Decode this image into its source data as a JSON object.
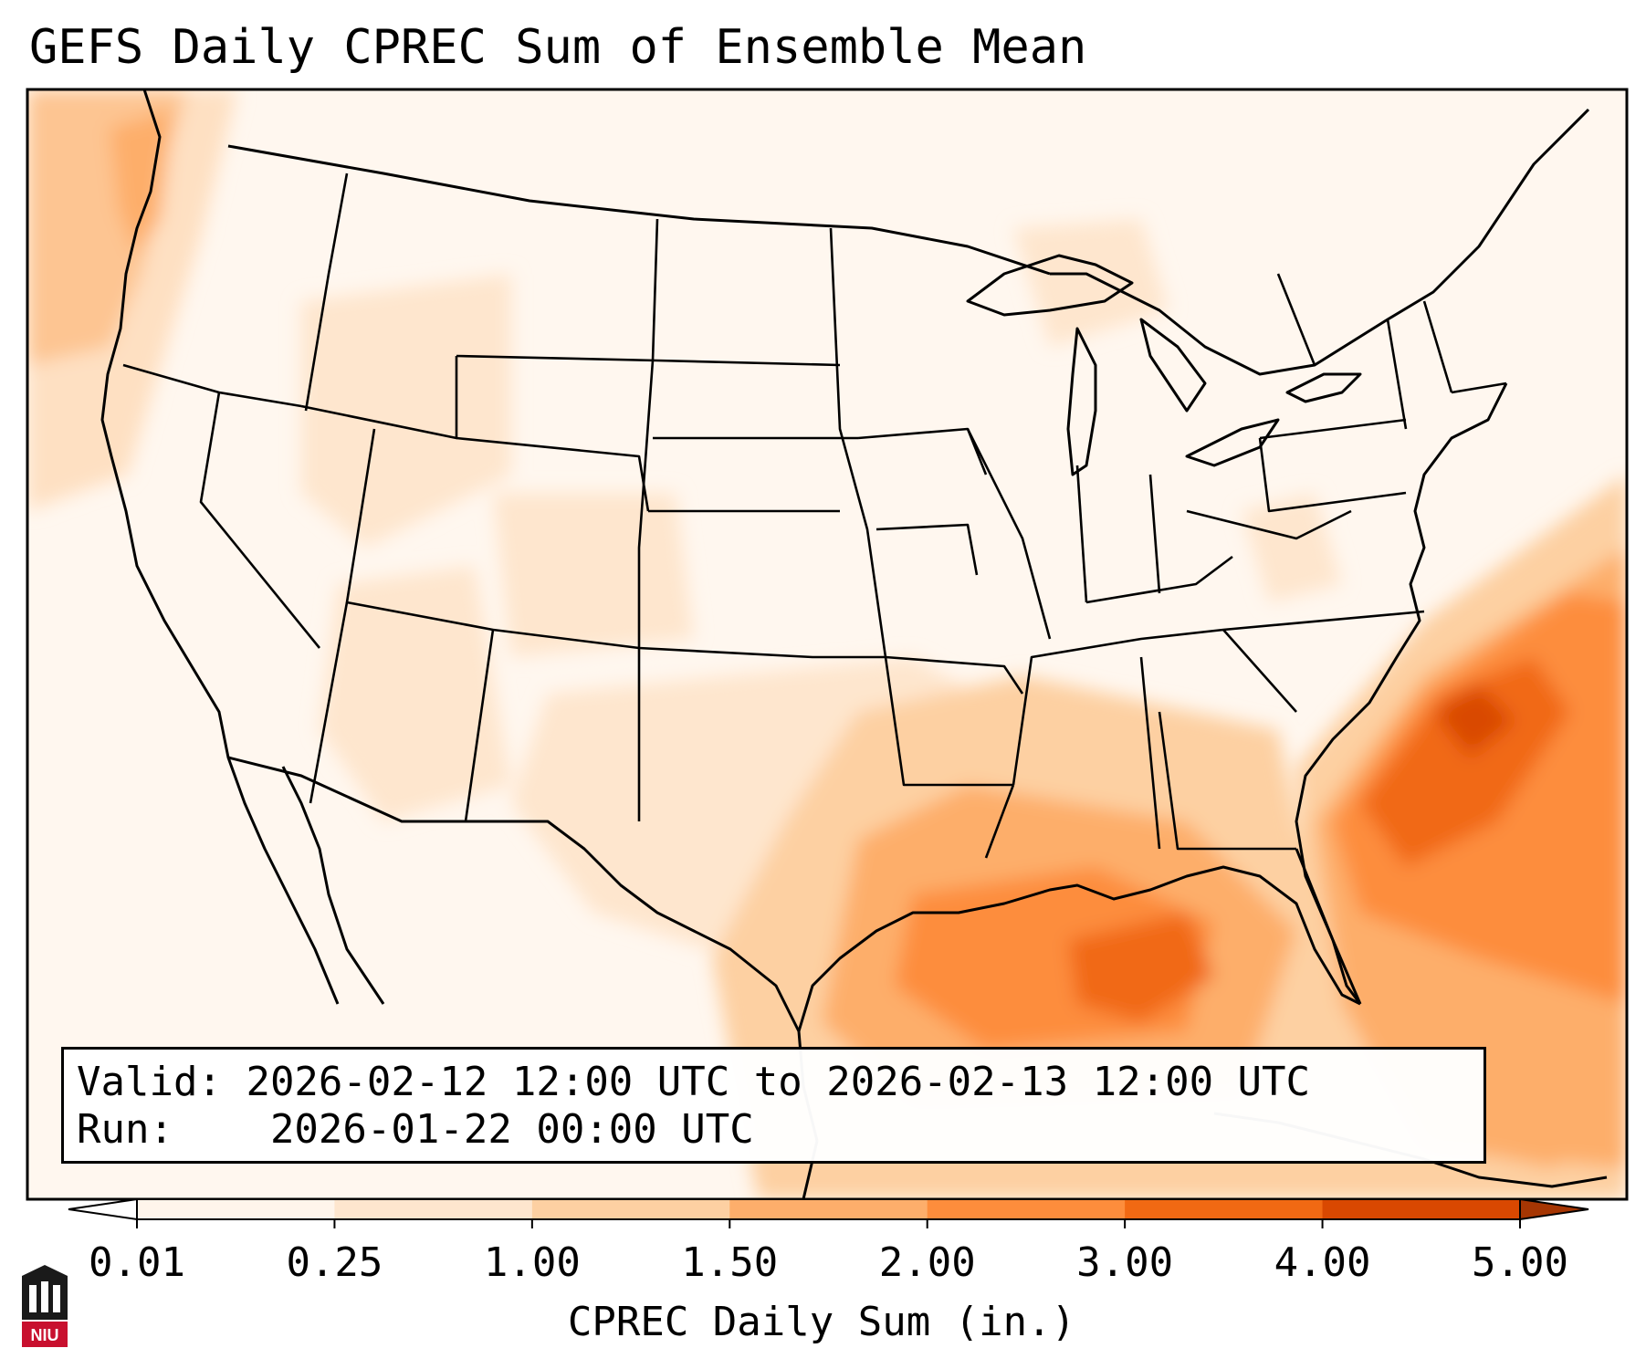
{
  "title": "GEFS Daily CPREC Sum of Ensemble Mean",
  "info_box": {
    "valid_label": "Valid:",
    "valid_value": "2026-02-12 12:00 UTC to 2026-02-13 12:00 UTC",
    "run_label": "Run:",
    "run_value": "2026-01-22 00:00 UTC"
  },
  "colorbar": {
    "label": "CPREC Daily Sum (in.)",
    "ticks": [
      "0.01",
      "0.25",
      "1.00",
      "1.50",
      "2.00",
      "3.00",
      "4.00",
      "5.00"
    ],
    "colors": [
      "#fff5eb",
      "#fee6ce",
      "#fdd0a2",
      "#fdae6b",
      "#fd8d3c",
      "#f16913",
      "#d94801"
    ],
    "under_color": "#ffffff",
    "over_color": "#a63603"
  },
  "logo": {
    "text": "NIU",
    "icon": "university-seal-icon",
    "color": "#c8102e"
  },
  "map": {
    "projection": "lambert-conformal",
    "region": "CONUS",
    "borders": [
      "coastlines",
      "country-borders",
      "state-borders"
    ],
    "precip_regions": [
      {
        "name": "Western Atlantic off Southeast coast",
        "level": 5
      },
      {
        "name": "Gulf of Mexico",
        "level": 4
      },
      {
        "name": "Northwest Pacific coast",
        "level": 3
      },
      {
        "name": "Gulf Coast and Texas",
        "level": 2
      }
    ]
  }
}
